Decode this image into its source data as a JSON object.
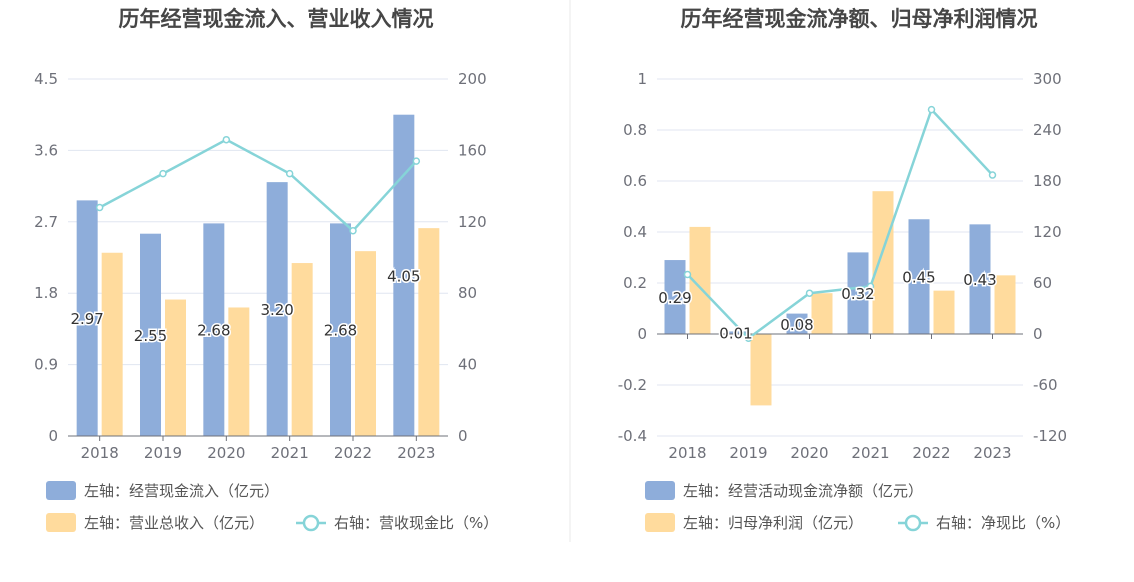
{
  "colors": {
    "bar_primary": "#8eadda",
    "bar_secondary": "#ffdb9d",
    "line": "#86d4d8",
    "grid": "#e0e6f1",
    "divider": "#e8e8e8"
  },
  "chart_data": [
    {
      "type": "bar",
      "title": "历年经营现金流入、营业收入情况",
      "categories": [
        "2018",
        "2019",
        "2020",
        "2021",
        "2022",
        "2023"
      ],
      "left_axis": {
        "ticks": [
          "0",
          "0.9",
          "1.8",
          "2.7",
          "3.6",
          "4.5"
        ],
        "min": 0,
        "max": 4.5
      },
      "right_axis": {
        "ticks": [
          "0",
          "40",
          "80",
          "120",
          "160",
          "200"
        ],
        "min": 0,
        "max": 200
      },
      "series": [
        {
          "name": "左轴：经营现金流入（亿元）",
          "kind": "bar",
          "axis": "left",
          "color": "#8eadda",
          "values": [
            2.97,
            2.55,
            2.68,
            3.2,
            2.68,
            4.05
          ],
          "labels": [
            "2.97",
            "2.55",
            "2.68",
            "3.20",
            "2.68",
            "4.05"
          ]
        },
        {
          "name": "左轴：营业总收入（亿元）",
          "kind": "bar",
          "axis": "left",
          "color": "#ffdb9d",
          "values": [
            2.31,
            1.72,
            1.62,
            2.18,
            2.33,
            2.62
          ]
        },
        {
          "name": "右轴：营收现金比（%）",
          "kind": "line",
          "axis": "right",
          "color": "#86d4d8",
          "values": [
            128,
            147,
            166,
            147,
            115,
            154
          ]
        }
      ],
      "legend": "bottom",
      "grid": true
    },
    {
      "type": "bar",
      "title": "历年经营现金流净额、归母净利润情况",
      "categories": [
        "2018",
        "2019",
        "2020",
        "2021",
        "2022",
        "2023"
      ],
      "left_axis": {
        "ticks": [
          "-0.4",
          "-0.2",
          "0",
          "0.2",
          "0.4",
          "0.6",
          "0.8",
          "1"
        ],
        "min": -0.4,
        "max": 1.0
      },
      "right_axis": {
        "ticks": [
          "-120",
          "-60",
          "0",
          "60",
          "120",
          "180",
          "240",
          "300"
        ],
        "min": -120,
        "max": 300
      },
      "series": [
        {
          "name": "左轴：经营活动现金流净额（亿元）",
          "kind": "bar",
          "axis": "left",
          "color": "#8eadda",
          "values": [
            0.29,
            0.01,
            0.08,
            0.32,
            0.45,
            0.43
          ],
          "labels": [
            "0.29",
            "0.01",
            "0.08",
            "0.32",
            "0.45",
            "0.43"
          ]
        },
        {
          "name": "左轴：归母净利润（亿元）",
          "kind": "bar",
          "axis": "left",
          "color": "#ffdb9d",
          "values": [
            0.42,
            -0.28,
            0.16,
            0.56,
            0.17,
            0.23
          ]
        },
        {
          "name": "右轴：净现比（%）",
          "kind": "line",
          "axis": "right",
          "color": "#86d4d8",
          "values": [
            70,
            -5,
            48,
            56,
            264,
            187
          ]
        }
      ],
      "legend": "bottom",
      "grid": true
    }
  ]
}
